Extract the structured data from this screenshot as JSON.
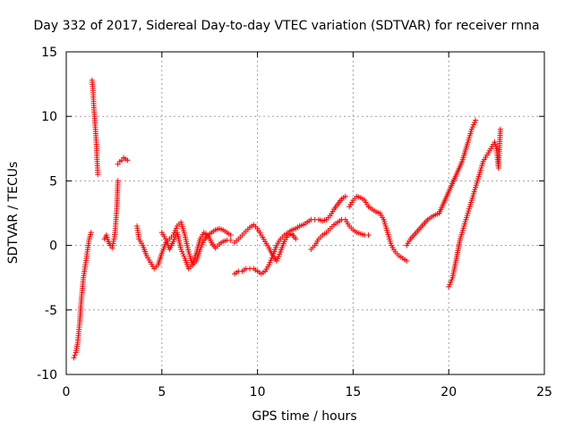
{
  "chart_data": {
    "type": "scatter",
    "title": "Day 332 of 2017, Sidereal Day-to-day VTEC variation (SDTVAR) for receiver rnna",
    "xlabel": "GPS time / hours",
    "ylabel": "SDTVAR / TECUs",
    "xlim": [
      0,
      25
    ],
    "ylim": [
      -10,
      15
    ],
    "xticks": [
      "0",
      "5",
      "10",
      "15",
      "20",
      "25"
    ],
    "yticks": [
      "-10",
      "-5",
      "0",
      "5",
      "10",
      "15"
    ],
    "grid": true,
    "marker": "+",
    "color": "#ff0000",
    "series": [
      {
        "name": "seg1",
        "x": [
          0.4,
          0.5,
          0.6,
          0.7,
          0.8,
          0.9,
          1.0,
          1.1,
          1.2,
          1.3
        ],
        "y": [
          -8.7,
          -8.3,
          -7.5,
          -6.0,
          -4.0,
          -2.5,
          -1.5,
          -0.5,
          0.5,
          1.0
        ]
      },
      {
        "name": "seg2",
        "x": [
          1.35,
          1.4,
          1.45,
          1.5,
          1.55,
          1.6,
          1.65
        ],
        "y": [
          12.8,
          12.0,
          10.5,
          9.5,
          8.5,
          7.0,
          5.5
        ]
      },
      {
        "name": "seg3",
        "x": [
          2.0,
          2.1,
          2.2,
          2.3,
          2.4,
          2.5,
          2.55,
          2.6,
          2.65,
          2.7
        ],
        "y": [
          0.5,
          0.8,
          0.3,
          0.0,
          -0.2,
          0.5,
          1.0,
          2.0,
          3.0,
          5.0
        ]
      },
      {
        "name": "seg4",
        "x": [
          2.7,
          2.8,
          2.9,
          3.0,
          3.1,
          3.2
        ],
        "y": [
          6.3,
          6.5,
          6.6,
          6.8,
          6.7,
          6.6
        ]
      },
      {
        "name": "seg5",
        "x": [
          3.7,
          3.8,
          4.0,
          4.2,
          4.4,
          4.6,
          4.8,
          5.0,
          5.2,
          5.4,
          5.6,
          5.8,
          6.0,
          6.2,
          6.4,
          6.6,
          6.8,
          7.0,
          7.2,
          7.4,
          7.6,
          7.8,
          8.0,
          8.2,
          8.4,
          8.6
        ],
        "y": [
          1.5,
          0.5,
          0.0,
          -0.8,
          -1.3,
          -1.8,
          -1.5,
          -0.6,
          0.2,
          0.5,
          0.8,
          1.5,
          1.8,
          0.8,
          -0.5,
          -1.5,
          -1.2,
          -0.3,
          0.4,
          0.8,
          1.0,
          1.2,
          1.3,
          1.2,
          1.0,
          0.8
        ]
      },
      {
        "name": "seg6",
        "x": [
          5.0,
          5.2,
          5.4,
          5.6,
          5.8,
          6.0,
          6.2,
          6.4,
          6.6,
          6.8,
          7.0,
          7.2,
          7.4,
          7.6,
          7.8,
          8.0,
          8.2,
          8.4,
          8.6
        ],
        "y": [
          1.0,
          0.5,
          -0.3,
          0.3,
          1.0,
          -0.3,
          -1.0,
          -1.8,
          -1.5,
          -0.6,
          0.5,
          1.0,
          0.8,
          0.2,
          -0.2,
          0.1,
          0.3,
          0.4,
          0.4
        ]
      },
      {
        "name": "seg7",
        "x": [
          8.8,
          9.0,
          9.2,
          9.4,
          9.6,
          9.8,
          10.0,
          10.2,
          10.4,
          10.6,
          10.8,
          11.0,
          11.2,
          11.4,
          11.6,
          11.8,
          12.0,
          12.2,
          12.4,
          12.6,
          12.8,
          13.0,
          13.2,
          13.4,
          13.6,
          13.8,
          14.0,
          14.2,
          14.4,
          14.6
        ],
        "y": [
          -2.2,
          -2.0,
          -2.0,
          -1.8,
          -1.8,
          -1.8,
          -2.0,
          -2.2,
          -2.0,
          -1.5,
          -0.8,
          0.0,
          0.5,
          0.8,
          1.0,
          1.2,
          1.3,
          1.5,
          1.6,
          1.8,
          2.0,
          2.0,
          2.0,
          1.9,
          2.0,
          2.3,
          2.8,
          3.2,
          3.6,
          3.8
        ]
      },
      {
        "name": "seg8",
        "x": [
          8.8,
          9.0,
          9.2,
          9.4,
          9.6,
          9.8,
          10.0,
          10.2,
          10.4,
          10.6,
          10.8,
          11.0,
          11.2,
          11.4,
          11.6,
          11.8,
          12.0
        ],
        "y": [
          0.2,
          0.5,
          0.8,
          1.1,
          1.4,
          1.6,
          1.3,
          0.8,
          0.3,
          -0.2,
          -0.8,
          -1.2,
          -0.5,
          0.3,
          0.8,
          0.9,
          0.5
        ]
      },
      {
        "name": "seg9",
        "x": [
          12.8,
          13.0,
          13.2,
          13.4,
          13.6,
          13.8,
          14.0,
          14.2,
          14.4,
          14.6,
          14.8,
          15.0,
          15.2,
          15.4,
          15.6,
          15.8
        ],
        "y": [
          -0.3,
          0.0,
          0.5,
          0.8,
          1.0,
          1.3,
          1.6,
          1.8,
          2.0,
          2.0,
          1.5,
          1.2,
          1.0,
          0.9,
          0.8,
          0.8
        ]
      },
      {
        "name": "seg10",
        "x": [
          14.8,
          15.0,
          15.2,
          15.4,
          15.6,
          15.8,
          16.0,
          16.2,
          16.4,
          16.6,
          16.8,
          17.0,
          17.2,
          17.4,
          17.6,
          17.8
        ],
        "y": [
          3.0,
          3.5,
          3.8,
          3.7,
          3.5,
          3.0,
          2.8,
          2.6,
          2.5,
          2.0,
          1.0,
          0.0,
          -0.5,
          -0.8,
          -1.0,
          -1.2
        ]
      },
      {
        "name": "seg11",
        "x": [
          17.8,
          18.0,
          18.3,
          18.6,
          18.9,
          19.2,
          19.5,
          19.8,
          20.1,
          20.4,
          20.7,
          21.0,
          21.2,
          21.4
        ],
        "y": [
          0.0,
          0.5,
          1.0,
          1.5,
          2.0,
          2.3,
          2.5,
          3.5,
          4.5,
          5.5,
          6.5,
          8.0,
          9.0,
          9.7
        ]
      },
      {
        "name": "seg12",
        "x": [
          20.0,
          20.2,
          20.4,
          20.6,
          20.8,
          21.0,
          21.2,
          21.4,
          21.6,
          21.8,
          22.0,
          22.2,
          22.4,
          22.5,
          22.6,
          22.7
        ],
        "y": [
          -3.2,
          -2.5,
          -1.0,
          0.5,
          1.5,
          2.5,
          3.5,
          4.5,
          5.5,
          6.5,
          7.0,
          7.5,
          8.0,
          7.5,
          6.0,
          9.0
        ]
      }
    ]
  }
}
